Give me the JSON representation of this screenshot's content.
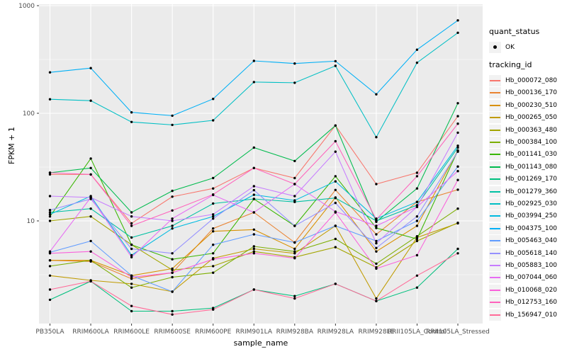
{
  "chart_data": {
    "type": "line",
    "title": "",
    "xlabel": "sample_name",
    "ylabel": "FPKM + 1",
    "y_scale": "log10",
    "ylim": [
      1.1,
      1000
    ],
    "y_ticks": [
      10,
      100,
      1000
    ],
    "y_tick_labels": [
      "10",
      "100",
      "1000"
    ],
    "y_minor_ticks": [
      3.162,
      31.62,
      316.2
    ],
    "grid": "on",
    "legend_position": "right",
    "panel_bg": "#EBEBEB",
    "grid_major_color": "#FFFFFF",
    "grid_minor_color": "#FFFFFF",
    "tick_label_color": "#4D4D4D",
    "point_color": "#000000",
    "categories": [
      "PB350LA",
      "RRIM600LA",
      "RRIM600LE",
      "RRIM600SE",
      "RRIM600PE",
      "RRIM901LA",
      "RRIM928BA",
      "RRIM928LA",
      "RRIM928LE",
      "RRII105LA_Control",
      "RRII105LA_Stressed"
    ],
    "series": [
      {
        "name": "Hb_000072_080",
        "color": "#F8766D",
        "values": [
          27,
          27,
          9.5,
          16.8,
          20,
          31,
          25,
          77,
          22,
          28,
          94
        ]
      },
      {
        "name": "Hb_000136_170",
        "color": "#EA8331",
        "values": [
          4.3,
          4.2,
          2.9,
          3.3,
          8.5,
          12,
          6.3,
          19.4,
          7.5,
          15,
          19.5
        ]
      },
      {
        "name": "Hb_000230_510",
        "color": "#D89000",
        "values": [
          4.3,
          4.3,
          3.1,
          3.6,
          8.0,
          8.3,
          5.5,
          16.5,
          5.2,
          9.0,
          45
        ]
      },
      {
        "name": "Hb_000265_050",
        "color": "#C09B00",
        "values": [
          3.1,
          2.8,
          2.6,
          2.2,
          4.5,
          5.5,
          5.0,
          9.0,
          1.9,
          7.0,
          9.5
        ]
      },
      {
        "name": "Hb_000363_480",
        "color": "#A3A500",
        "values": [
          10,
          11,
          6.0,
          3.5,
          3.8,
          5.2,
          4.6,
          5.7,
          3.7,
          6.5,
          9.6
        ]
      },
      {
        "name": "Hb_000384_100",
        "color": "#7CAE00",
        "values": [
          3.8,
          4.3,
          2.4,
          3.0,
          3.3,
          5.8,
          5.2,
          6.8,
          4.0,
          7.2,
          13
        ]
      },
      {
        "name": "Hb_001141_030",
        "color": "#39B600",
        "values": [
          11,
          38,
          6.0,
          4.4,
          5.0,
          16,
          9.0,
          26,
          8.6,
          6.8,
          45
        ]
      },
      {
        "name": "Hb_001143_080",
        "color": "#00BB4E",
        "values": [
          28,
          31,
          12,
          19,
          25,
          48,
          36,
          77,
          9.8,
          20,
          124
        ]
      },
      {
        "name": "Hb_001269_170",
        "color": "#00BF7D",
        "values": [
          1.85,
          2.75,
          1.45,
          1.45,
          1.55,
          2.3,
          2.0,
          2.6,
          1.8,
          2.4,
          5.5
        ]
      },
      {
        "name": "Hb_001279_360",
        "color": "#00C1A3",
        "values": [
          12,
          13,
          7.0,
          9.0,
          14.5,
          16,
          15,
          16.3,
          10,
          14,
          48
        ]
      },
      {
        "name": "Hb_002925_030",
        "color": "#00BFC4",
        "values": [
          135,
          131,
          83,
          78,
          86,
          195,
          192,
          276,
          60,
          295,
          560
        ]
      },
      {
        "name": "Hb_003994_250",
        "color": "#00BAE0",
        "values": [
          11.5,
          17,
          4.8,
          8.5,
          11,
          17.5,
          15.5,
          23.3,
          10.5,
          15,
          50
        ]
      },
      {
        "name": "Hb_004375_100",
        "color": "#00B0F6",
        "values": [
          240,
          263,
          102,
          95,
          136,
          307,
          290,
          305,
          150,
          390,
          730
        ]
      },
      {
        "name": "Hb_005463_040",
        "color": "#619CFF",
        "values": [
          5.1,
          6.5,
          3.1,
          2.2,
          6.0,
          7.5,
          6.3,
          9.0,
          6.5,
          10,
          32
        ]
      },
      {
        "name": "Hb_005618_140",
        "color": "#9590FF",
        "values": [
          12.6,
          16,
          5.5,
          5.0,
          10.5,
          19.3,
          9.0,
          14.7,
          5.6,
          11,
          44
        ]
      },
      {
        "name": "Hb_005883_100",
        "color": "#C77CFF",
        "values": [
          17,
          16.5,
          11,
          10,
          11.5,
          21,
          17,
          44,
          6.2,
          13.5,
          66
        ]
      },
      {
        "name": "Hb_007044_060",
        "color": "#E76BF3",
        "values": [
          5.2,
          16.5,
          4.6,
          10.5,
          17.4,
          12,
          22,
          12.2,
          9.0,
          13.5,
          29
        ]
      },
      {
        "name": "Hb_010068_020",
        "color": "#FA62DB",
        "values": [
          5.0,
          5.2,
          3.0,
          3.3,
          4.4,
          5.0,
          4.5,
          12,
          3.6,
          4.8,
          24
        ]
      },
      {
        "name": "Hb_012753_160",
        "color": "#FF62BC",
        "values": [
          28,
          27,
          9.0,
          12.5,
          17.6,
          31,
          22,
          55,
          10.3,
          26,
          80
        ]
      },
      {
        "name": "Hb_156947_010",
        "color": "#FF6A98",
        "values": [
          2.3,
          2.75,
          1.62,
          1.35,
          1.5,
          2.3,
          1.9,
          2.6,
          1.8,
          3.1,
          5.0
        ]
      }
    ],
    "legend": {
      "groups": [
        {
          "title": "quant_status",
          "items": [
            {
              "label": "OK",
              "key_type": "point",
              "color": "#000000"
            }
          ]
        },
        {
          "title": "tracking_id",
          "key_type": "line",
          "items_from": "series"
        }
      ]
    }
  }
}
